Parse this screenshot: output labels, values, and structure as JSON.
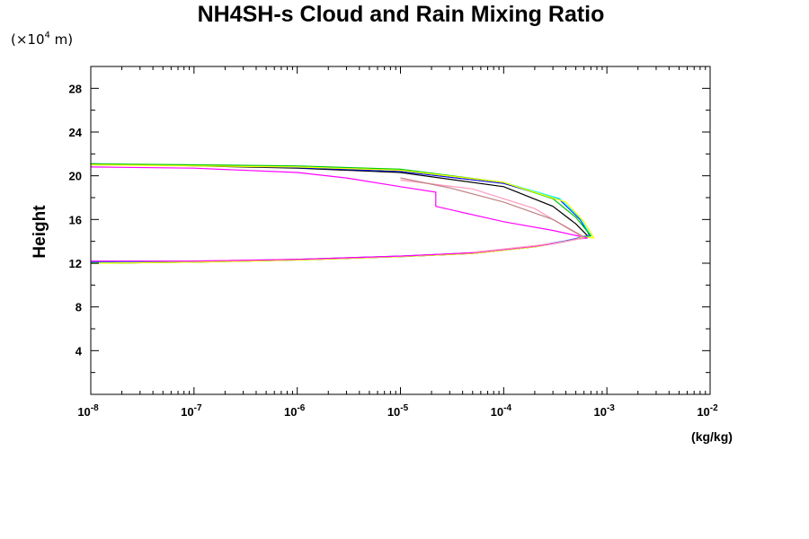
{
  "chart_data": {
    "type": "line",
    "title": "NH4SH-s Cloud and Rain Mixing Ratio",
    "y_unit_prefix": "(×10",
    "y_unit_exponent": "4",
    "y_unit_suffix": " m)",
    "ylabel": "Height",
    "xlabel": "(kg/kg)",
    "x_scale": "log",
    "xlim": [
      1e-08,
      0.01
    ],
    "ylim": [
      0,
      30
    ],
    "x_ticks": [
      {
        "base": "10",
        "exp": "-8",
        "value": 1e-08
      },
      {
        "base": "10",
        "exp": "-7",
        "value": 1e-07
      },
      {
        "base": "10",
        "exp": "-6",
        "value": 1e-06
      },
      {
        "base": "10",
        "exp": "-5",
        "value": 1e-05
      },
      {
        "base": "10",
        "exp": "-4",
        "value": 0.0001
      },
      {
        "base": "10",
        "exp": "-3",
        "value": 0.001
      },
      {
        "base": "10",
        "exp": "-2",
        "value": 0.01
      }
    ],
    "y_ticks": [
      {
        "label": "4",
        "value": 4
      },
      {
        "label": "8",
        "value": 8
      },
      {
        "label": "12",
        "value": 12
      },
      {
        "label": "16",
        "value": 16
      },
      {
        "label": "20",
        "value": 20
      },
      {
        "label": "24",
        "value": 24
      },
      {
        "label": "28",
        "value": 28
      }
    ],
    "grid": false,
    "legend": false,
    "series": [
      {
        "color": "#000000",
        "x": [
          1e-08,
          1e-07,
          1e-06,
          1e-05,
          5e-05,
          0.0001,
          0.0002,
          0.0003,
          0.0004,
          0.0005,
          0.0006,
          0.00065,
          0.0005,
          0.0003,
          0.0001,
          1e-05,
          1e-06,
          1e-07,
          1e-08
        ],
        "y": [
          12.0,
          12.1,
          12.3,
          12.6,
          12.9,
          13.2,
          13.5,
          13.8,
          14.0,
          14.2,
          14.4,
          14.5,
          15.6,
          17.2,
          19.0,
          20.3,
          20.7,
          20.9,
          21.1
        ]
      },
      {
        "color": "#0000ff",
        "x": [
          1e-08,
          1e-07,
          1e-06,
          1e-05,
          5e-05,
          0.0001,
          0.0002,
          0.0003,
          0.0004,
          0.0005,
          0.0006,
          0.00068,
          0.00055,
          0.00035,
          0.0001,
          1e-05,
          1e-06,
          1e-07,
          1e-08
        ],
        "y": [
          12.1,
          12.15,
          12.35,
          12.65,
          12.95,
          13.25,
          13.55,
          13.85,
          14.05,
          14.25,
          14.45,
          14.55,
          16.0,
          17.8,
          19.3,
          20.4,
          20.75,
          20.95,
          21.0
        ]
      },
      {
        "color": "#00ffff",
        "x": [
          1e-08,
          1e-07,
          1e-06,
          1e-05,
          5e-05,
          0.0001,
          0.0002,
          0.0003,
          0.0004,
          0.0005,
          0.0006,
          0.0007,
          0.00055,
          0.00035,
          0.0001,
          1e-05,
          1e-06,
          1e-07,
          1e-08
        ],
        "y": [
          12.05,
          12.12,
          12.32,
          12.62,
          12.92,
          13.22,
          13.52,
          13.82,
          14.02,
          14.22,
          14.42,
          14.52,
          16.1,
          17.9,
          19.4,
          20.5,
          20.8,
          20.95,
          21.0
        ]
      },
      {
        "color": "#00c800",
        "x": [
          1e-08,
          1e-07,
          1e-06,
          1e-05,
          5e-05,
          0.0001,
          0.0002,
          0.0003,
          0.0004,
          0.0005,
          0.0006,
          0.0007,
          0.0005,
          0.0003,
          0.0001,
          1e-05,
          1e-06,
          1e-07,
          1e-08
        ],
        "y": [
          12.0,
          12.1,
          12.3,
          12.6,
          12.9,
          13.2,
          13.5,
          13.8,
          14.0,
          14.2,
          14.4,
          14.5,
          16.2,
          17.9,
          19.4,
          20.6,
          20.9,
          21.0,
          21.1
        ]
      },
      {
        "color": "#ffff00",
        "x": [
          1e-08,
          1e-07,
          1e-06,
          1e-05,
          5e-05,
          0.0001,
          0.0002,
          0.0003,
          0.0004,
          0.0005,
          0.0006,
          0.00075,
          0.0006,
          0.0004,
          0.0001,
          1e-05,
          1e-06,
          1e-07,
          1e-08
        ],
        "y": [
          12.0,
          12.1,
          12.3,
          12.6,
          12.9,
          13.2,
          13.5,
          13.8,
          14.0,
          14.2,
          14.4,
          14.3,
          15.8,
          17.6,
          19.4,
          20.5,
          20.8,
          20.9,
          21.0
        ]
      },
      {
        "color": "#ff00ff",
        "x": [
          1e-08,
          1e-07,
          1e-06,
          1e-05,
          5e-05,
          0.0001,
          0.0002,
          0.0003,
          0.0004,
          0.0005,
          0.00065,
          0.0003,
          0.0001,
          2.2e-05,
          2.2e-05,
          1e-05,
          3e-06,
          1e-06,
          1e-07,
          1e-08
        ],
        "y": [
          12.2,
          12.2,
          12.35,
          12.65,
          12.95,
          13.25,
          13.55,
          13.8,
          14.0,
          14.2,
          14.3,
          15.0,
          15.8,
          17.2,
          18.5,
          19.0,
          19.8,
          20.3,
          20.7,
          20.8
        ]
      },
      {
        "color": "#ff99c0",
        "x": [
          5e-05,
          0.0001,
          0.0002,
          0.0004,
          0.0006,
          0.0002,
          5e-05,
          1e-05
        ],
        "y": [
          13.0,
          13.3,
          13.6,
          14.0,
          14.3,
          17.0,
          18.8,
          19.6
        ]
      },
      {
        "color": "#c08080",
        "x": [
          0.0006,
          0.0003,
          0.0001,
          3e-05,
          1e-05
        ],
        "y": [
          14.4,
          16.0,
          17.6,
          18.9,
          19.8
        ]
      }
    ]
  }
}
